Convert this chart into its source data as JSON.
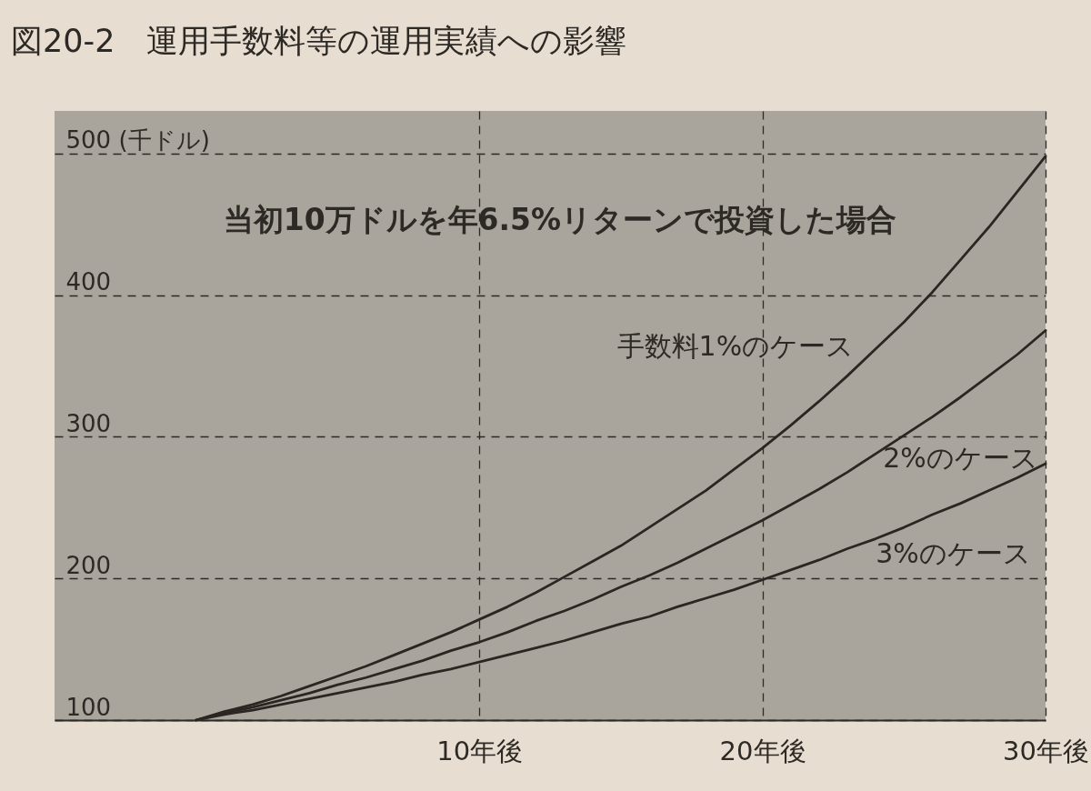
{
  "chart_data": {
    "type": "line",
    "title": "図20-2　運用手数料等の運用実績への影響",
    "subtitle": "当初10万ドルを年6.5%リターンで投資した場合",
    "ylabel": "(千ドル)",
    "x": [
      0,
      1,
      2,
      3,
      4,
      5,
      6,
      7,
      8,
      9,
      10,
      11,
      12,
      13,
      14,
      15,
      16,
      17,
      18,
      19,
      20,
      21,
      22,
      23,
      24,
      25,
      26,
      27,
      28,
      29,
      30
    ],
    "xlim": [
      -5,
      30
    ],
    "xticks": [
      {
        "value": 10,
        "label": "10年後"
      },
      {
        "value": 20,
        "label": "20年後"
      },
      {
        "value": 30,
        "label": "30年後"
      }
    ],
    "ylim": [
      100,
      530
    ],
    "yticks": [
      100,
      200,
      300,
      400,
      500
    ],
    "grid": true,
    "line_style": "solid",
    "series": [
      {
        "name": "手数料1%のケース",
        "color": "#2b2622",
        "values": [
          100,
          106,
          111,
          117,
          124,
          131,
          138,
          146,
          154,
          162,
          171,
          180,
          190,
          201,
          212,
          223,
          236,
          249,
          262,
          277,
          292,
          308,
          325,
          343,
          362,
          381,
          402,
          425,
          448,
          473,
          498
        ]
      },
      {
        "name": "2%のケース",
        "color": "#2b2622",
        "values": [
          100,
          105,
          109,
          114,
          119,
          125,
          130,
          136,
          142,
          149,
          155,
          162,
          170,
          177,
          185,
          194,
          202,
          211,
          221,
          231,
          241,
          252,
          263,
          275,
          288,
          301,
          314,
          328,
          343,
          358,
          375
        ]
      },
      {
        "name": "3%のケース",
        "color": "#2b2622",
        "values": [
          100,
          104,
          107,
          111,
          115,
          119,
          123,
          127,
          132,
          136,
          141,
          146,
          151,
          156,
          162,
          168,
          173,
          180,
          186,
          192,
          199,
          206,
          213,
          221,
          228,
          236,
          245,
          253,
          262,
          271,
          281
        ]
      }
    ]
  }
}
